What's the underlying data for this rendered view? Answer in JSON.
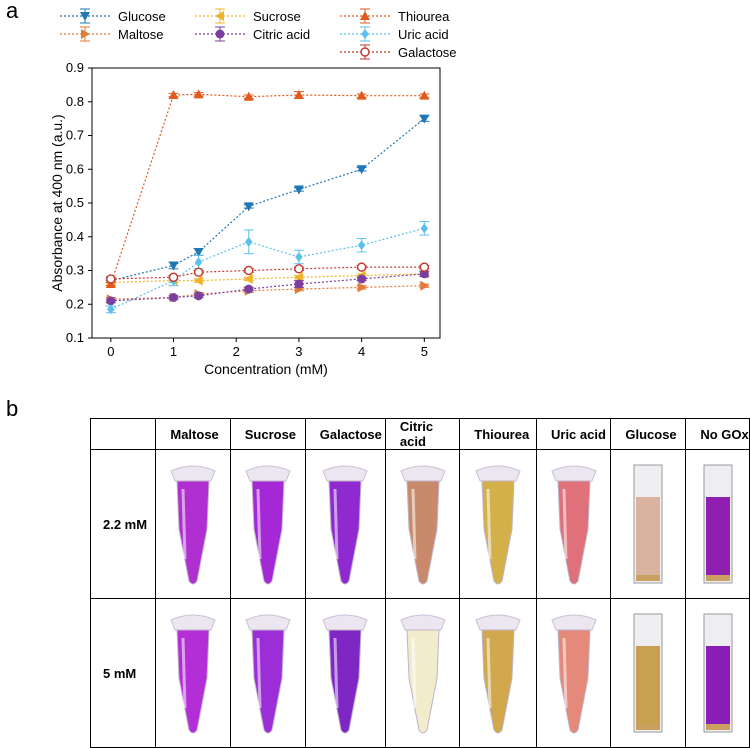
{
  "panel_labels": {
    "a": "a",
    "b": "b"
  },
  "chart_data": {
    "type": "line",
    "xlabel": "Concentration (mM)",
    "ylabel": "Absorbance at 400 nm (a.u.)",
    "xlim": [
      -0.3,
      5.25
    ],
    "ylim": [
      0.1,
      0.9
    ],
    "xticks": [
      0,
      1,
      2,
      3,
      4,
      5
    ],
    "xtick_labels": [
      "0",
      "1",
      "2",
      "3",
      "4",
      "5"
    ],
    "yticks": [
      0.1,
      0.2,
      0.3,
      0.4,
      0.5,
      0.6,
      0.7,
      0.8,
      0.9
    ],
    "ytick_labels": [
      "0.1",
      "0.2",
      "0.3",
      "0.4",
      "0.5",
      "0.6",
      "0.7",
      "0.8",
      "0.9"
    ],
    "legend_position": "top",
    "series": [
      {
        "name": "Glucose",
        "color": "#1f77b4",
        "marker": "tri-down",
        "x": [
          0,
          1,
          1.4,
          2.2,
          3,
          4,
          5
        ],
        "y": [
          0.27,
          0.315,
          0.355,
          0.49,
          0.54,
          0.6,
          0.75
        ],
        "err": [
          0.005,
          0.01,
          0.01,
          0.005,
          0.005,
          0.005,
          0.008
        ]
      },
      {
        "name": "Maltose",
        "color": "#e07b39",
        "marker": "tri-right",
        "x": [
          0,
          1,
          1.4,
          2.2,
          3,
          4,
          5
        ],
        "y": [
          0.215,
          0.22,
          0.23,
          0.24,
          0.245,
          0.25,
          0.255
        ],
        "err": [
          0.005,
          0.005,
          0.005,
          0.005,
          0.005,
          0.005,
          0.005
        ]
      },
      {
        "name": "Sucrose",
        "color": "#f0b429",
        "marker": "tri-left",
        "x": [
          0,
          1,
          1.4,
          2.2,
          3,
          4,
          5
        ],
        "y": [
          0.265,
          0.27,
          0.27,
          0.275,
          0.28,
          0.285,
          0.29
        ],
        "err": [
          0.005,
          0.005,
          0.005,
          0.005,
          0.005,
          0.005,
          0.005
        ]
      },
      {
        "name": "Citric acid",
        "color": "#7b3fa0",
        "marker": "circle",
        "x": [
          0,
          1,
          1.4,
          2.2,
          3,
          4,
          5
        ],
        "y": [
          0.21,
          0.22,
          0.225,
          0.245,
          0.26,
          0.275,
          0.29
        ],
        "err": [
          0.005,
          0.005,
          0.005,
          0.005,
          0.01,
          0.005,
          0.008
        ]
      },
      {
        "name": "Thiourea",
        "color": "#e05a1e",
        "marker": "tri-up",
        "x": [
          0,
          1,
          1.4,
          2.2,
          3,
          4,
          5
        ],
        "y": [
          0.26,
          0.82,
          0.822,
          0.815,
          0.82,
          0.818,
          0.818
        ],
        "err": [
          0.005,
          0.005,
          0.005,
          0.005,
          0.01,
          0.005,
          0.005
        ]
      },
      {
        "name": "Uric acid",
        "color": "#5bc0eb",
        "marker": "diamond",
        "x": [
          0,
          1,
          1.4,
          2.2,
          3,
          4,
          5
        ],
        "y": [
          0.185,
          0.27,
          0.325,
          0.385,
          0.34,
          0.375,
          0.425
        ],
        "err": [
          0.01,
          0.015,
          0.02,
          0.035,
          0.02,
          0.02,
          0.02
        ]
      },
      {
        "name": "Galactose",
        "color": "#c0392b",
        "marker": "open-circle",
        "x": [
          0,
          1,
          1.4,
          2.2,
          3,
          4,
          5
        ],
        "y": [
          0.275,
          0.28,
          0.295,
          0.3,
          0.305,
          0.31,
          0.31
        ],
        "err": [
          0.005,
          0.005,
          0.005,
          0.005,
          0.005,
          0.005,
          0.005
        ]
      }
    ]
  },
  "table": {
    "columns": [
      "Maltose",
      "Sucrose",
      "Galactose",
      "Citric acid",
      "Thiourea",
      "Uric acid",
      "Glucose",
      "No GOx"
    ],
    "rows": [
      {
        "label": "2.2 mM",
        "colors": [
          "#b02fd0",
          "#a528d6",
          "#8e2ad0",
          "#c88a6a",
          "#d4b04a",
          "#e0707a",
          "#d9b3a0",
          "#8e1fb0"
        ],
        "shapes": [
          "tube",
          "tube",
          "tube",
          "tube",
          "tube",
          "tube",
          "cuvette",
          "cuvette"
        ]
      },
      {
        "label": "5 mM",
        "colors": [
          "#b42ed8",
          "#9b2ed6",
          "#7f27c4",
          "#f3eccc",
          "#d1a84c",
          "#e58a7a",
          "#c8a050",
          "#8a1fb8"
        ],
        "shapes": [
          "tube",
          "tube",
          "tube",
          "tube",
          "tube",
          "tube",
          "cuvette",
          "cuvette"
        ]
      }
    ]
  }
}
